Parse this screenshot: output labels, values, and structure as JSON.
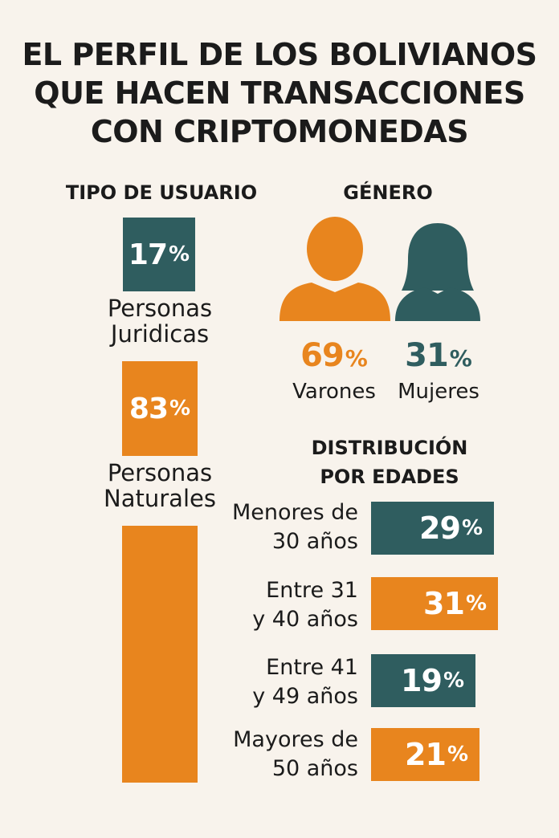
{
  "title": {
    "line1": "EL PERFIL DE LOS BOLIVIANOS",
    "line2": "QUE HACEN TRANSACCIONES",
    "line3": "CON CRIPTOMONEDAS"
  },
  "colors": {
    "teal": "#2f5d5f",
    "orange": "#e8851e",
    "background": "#f8f3ec"
  },
  "icons": {
    "male": "male-person-icon",
    "female": "female-person-icon"
  },
  "chart_data": [
    {
      "type": "bar",
      "title": "TIPO DE USUARIO",
      "categories": [
        "Personas Juridicas",
        "Personas Naturales"
      ],
      "values": [
        17,
        83
      ],
      "unit": "%",
      "labels": {
        "juridicas_line1": "Personas",
        "juridicas_line2": "Juridicas",
        "naturales_line1": "Personas",
        "naturales_line2": "Naturales"
      },
      "colors": [
        "#2f5d5f",
        "#e8851e"
      ]
    },
    {
      "type": "pie",
      "title": "GÉNERO",
      "categories": [
        "Varones",
        "Mujeres"
      ],
      "values": [
        69,
        31
      ],
      "unit": "%",
      "colors": [
        "#e8851e",
        "#2f5d5f"
      ]
    },
    {
      "type": "bar",
      "title": "DISTRIBUCIÓN POR EDADES",
      "title_line1": "DISTRIBUCIÓN",
      "title_line2": "POR EDADES",
      "categories": [
        "Menores de 30 años",
        "Entre 31 y 40 años",
        "Entre 41 y 49 años",
        "Mayores de 50 años"
      ],
      "label_lines": [
        [
          "Menores de",
          "30 años"
        ],
        [
          "Entre 31",
          "y 40 años"
        ],
        [
          "Entre 41",
          "y 49 años"
        ],
        [
          "Mayores de",
          "50 años"
        ]
      ],
      "values": [
        29,
        31,
        19,
        21
      ],
      "unit": "%",
      "colors": [
        "#2f5d5f",
        "#e8851e",
        "#2f5d5f",
        "#e8851e"
      ]
    }
  ]
}
